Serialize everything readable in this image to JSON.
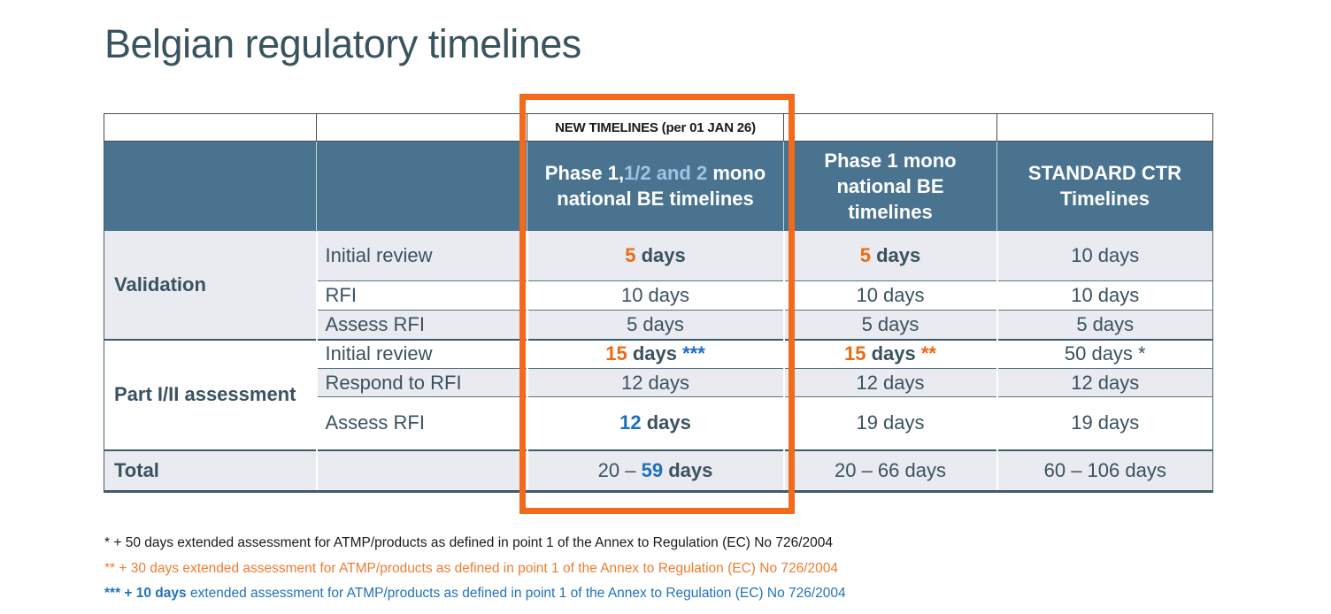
{
  "title": "Belgian regulatory timelines",
  "colors": {
    "header_bg": "#4A7390",
    "header_text": "#FFFFFF",
    "header_highlight_text": "#9DC3E6",
    "body_text": "#3A5260",
    "accent_orange": "#ED6A11",
    "accent_blue": "#1F6FBF",
    "highlight_box": "#F26A1B",
    "row_alt_bg": "#E9EBF0",
    "footnote_orange": "#ED7D31",
    "footnote_blue": "#2272B9"
  },
  "table": {
    "banner": "NEW TIMELINES (per 01 JAN 26)",
    "columns": {
      "phase12": {
        "prefix": "Phase 1,",
        "highlight": "1/2 and 2",
        "suffix": " mono national BE timelines"
      },
      "phase1": "Phase 1 mono national BE timelines",
      "standard": "STANDARD CTR Timelines"
    },
    "body": {
      "validation": {
        "label": "Validation",
        "initial_review": {
          "label": "Initial review",
          "new12": {
            "num": "5",
            "rest": " days"
          },
          "mono": {
            "num": "5",
            "rest": " days"
          },
          "ctr": "10 days"
        },
        "rfi": {
          "label": "RFI",
          "new12": "10 days",
          "mono": "10 days",
          "ctr": "10 days"
        },
        "assess_rfi": {
          "label": "Assess RFI",
          "new12": "5 days",
          "mono": "5 days",
          "ctr": "5 days"
        }
      },
      "part": {
        "label": "Part I/II assessment",
        "initial_review": {
          "label": "Initial review",
          "new12": {
            "num": "15",
            "rest": " days ",
            "mark": "***"
          },
          "mono": {
            "num": "15",
            "rest": " days ",
            "mark": "**"
          },
          "ctr": "50 days *"
        },
        "respond_rfi": {
          "label": "Respond to RFI",
          "new12": "12 days",
          "mono": "12 days",
          "ctr": "12 days"
        },
        "assess_rfi": {
          "label": "Assess RFI",
          "new12": {
            "num": "12",
            "rest": " days"
          },
          "mono": "19 days",
          "ctr": "19 days"
        }
      },
      "total": {
        "label": "Total",
        "new12": {
          "prefix": "20 – ",
          "num": "59",
          "rest": " days"
        },
        "mono": "20 – 66 days",
        "ctr": "60 – 106 days"
      }
    }
  },
  "footnotes": [
    {
      "text": "* + 50 days extended assessment for ATMP/products as defined in point 1 of the Annex to Regulation (EC) No 726/2004"
    },
    {
      "text": "** + 30 days extended assessment for ATMP/products as defined in point 1 of the Annex to Regulation (EC) No 726/2004"
    },
    {
      "bold": "*** + 10 days",
      "text": " extended assessment for ATMP/products as defined in point 1 of the Annex to Regulation (EC) No 726/2004"
    }
  ]
}
